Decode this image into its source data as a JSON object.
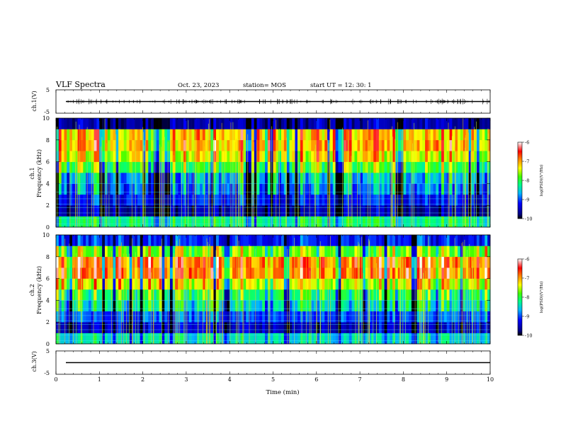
{
  "header": {
    "title": "VLF Spectra",
    "date": "Oct. 23, 2023",
    "station": "station= MOS",
    "start": "start  UT =   12: 30: 1"
  },
  "chart_data": {
    "type": "heatmap",
    "xlabel": "Time  (min)",
    "xlim": [
      0,
      10
    ],
    "x_ticks": [
      "0",
      "1",
      "2",
      "3",
      "4",
      "5",
      "6",
      "7",
      "8",
      "9",
      "10"
    ],
    "panels": [
      {
        "id": "ch1_waveform",
        "type": "line",
        "ylabel": "ch.1(V)",
        "ylim": [
          -5,
          5
        ],
        "y_ticks": [
          "5",
          "-5"
        ],
        "baseline": 0
      },
      {
        "id": "ch1_spectrogram",
        "type": "heatmap",
        "ylabel_line1": "ch.1",
        "ylabel_line2": "Frequency  (kHz)",
        "ylim": [
          0,
          10
        ],
        "y_ticks": [
          "0",
          "2",
          "4",
          "6",
          "8",
          "10"
        ],
        "colorbar": {
          "label": "log(PSD)(V²/Hz)",
          "range": [
            -10,
            -6
          ],
          "ticks": [
            "-6",
            "-7",
            "-8",
            "-9",
            "-10"
          ]
        },
        "band_profile": [
          {
            "freq": 0.5,
            "level": -8.2
          },
          {
            "freq": 1.5,
            "level": -9.6
          },
          {
            "freq": 2.5,
            "level": -9.2
          },
          {
            "freq": 3.5,
            "level": -8.9
          },
          {
            "freq": 4.5,
            "level": -8.7
          },
          {
            "freq": 5.5,
            "level": -8.0
          },
          {
            "freq": 6.5,
            "level": -7.4
          },
          {
            "freq": 7.5,
            "level": -7.1
          },
          {
            "freq": 8.5,
            "level": -7.2
          },
          {
            "freq": 9.5,
            "level": -9.6
          }
        ]
      },
      {
        "id": "ch2_spectrogram",
        "type": "heatmap",
        "ylabel_line1": "ch.2",
        "ylabel_line2": "Frequency  (kHz)",
        "ylim": [
          0,
          10
        ],
        "y_ticks": [
          "0",
          "2",
          "4",
          "6",
          "8",
          "10"
        ],
        "colorbar": {
          "label": "log(PSD)(V²/Hz)",
          "range": [
            -10,
            -6
          ],
          "ticks": [
            "-6",
            "-7",
            "-8",
            "-9",
            "-10"
          ]
        },
        "band_profile": [
          {
            "freq": 0.5,
            "level": -8.5
          },
          {
            "freq": 1.5,
            "level": -9.5
          },
          {
            "freq": 2.5,
            "level": -9.0
          },
          {
            "freq": 3.5,
            "level": -8.5
          },
          {
            "freq": 4.5,
            "level": -8.2
          },
          {
            "freq": 5.5,
            "level": -7.5
          },
          {
            "freq": 6.5,
            "level": -6.9
          },
          {
            "freq": 7.5,
            "level": -6.9
          },
          {
            "freq": 8.5,
            "level": -7.8
          },
          {
            "freq": 9.5,
            "level": -9.2
          }
        ]
      },
      {
        "id": "ch3_waveform",
        "type": "line",
        "ylabel": "ch.3(V)",
        "ylim": [
          -5,
          5
        ],
        "y_ticks": [
          "5",
          "-5"
        ],
        "baseline": 0
      }
    ]
  }
}
